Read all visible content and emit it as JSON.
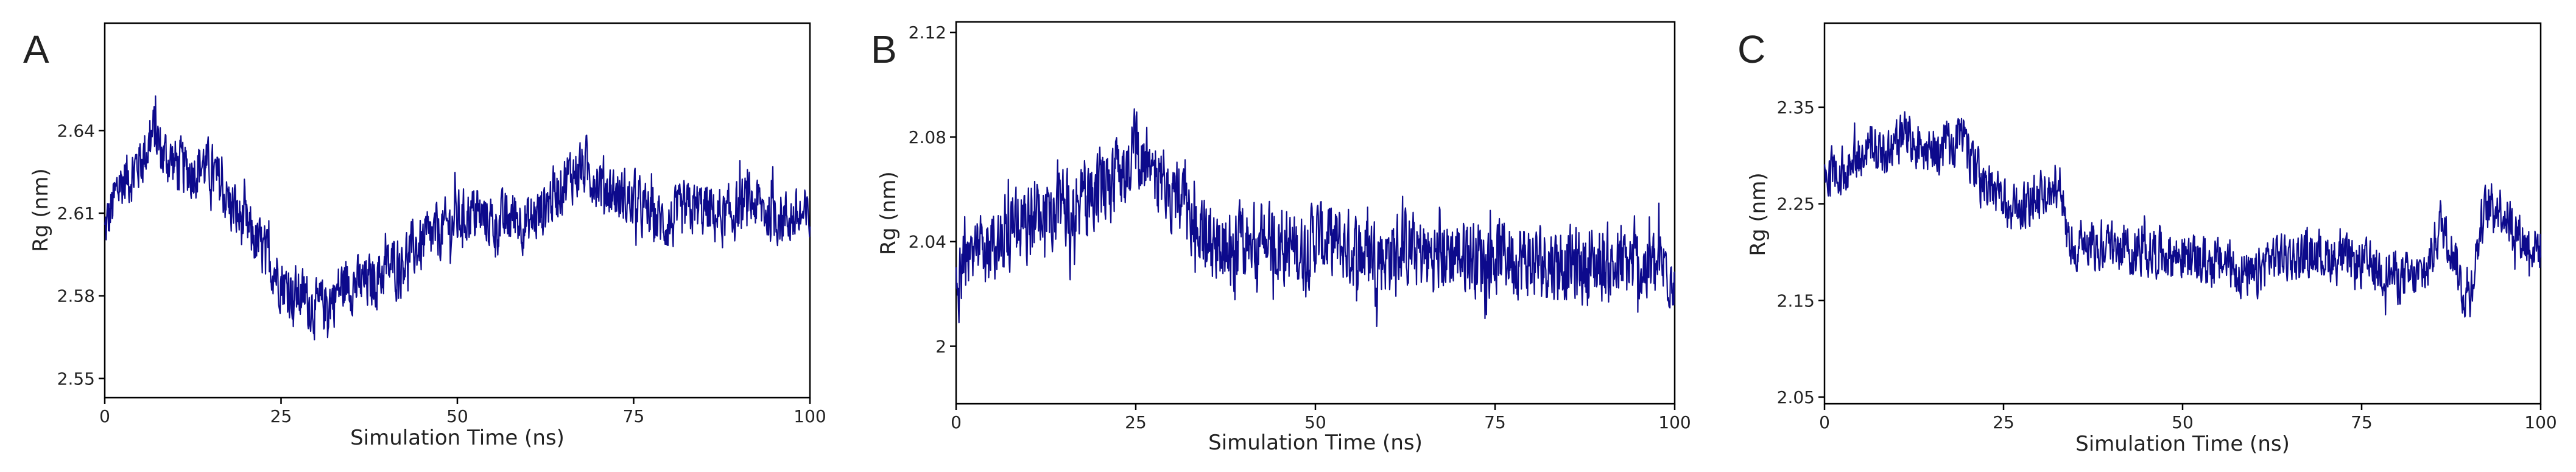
{
  "figure": {
    "background": "#ffffff",
    "line_color": "#0d0a8c",
    "axis_color": "#000000"
  },
  "chart_data": [
    {
      "type": "line",
      "panel_label": "A",
      "xlabel": "Simulation Time (ns)",
      "ylabel": "Rg (nm)",
      "xlim": [
        0,
        100
      ],
      "ylim": [
        2.543,
        2.679
      ],
      "xticks": [
        0,
        25,
        50,
        75,
        100
      ],
      "yticks": [
        2.55,
        2.58,
        2.61,
        2.64
      ],
      "ytick_labels": [
        "2.55",
        "2.58",
        "2.61",
        "2.64"
      ],
      "grid": false,
      "noise_amplitude": 0.009,
      "series": [
        {
          "color": "#0d0a8c",
          "x": [
            0,
            2,
            4,
            6,
            7,
            8,
            10,
            12,
            14,
            16,
            18,
            20,
            22,
            24,
            26,
            28,
            30,
            32,
            34,
            36,
            38,
            40,
            42,
            44,
            46,
            48,
            50,
            52,
            54,
            56,
            58,
            60,
            62,
            64,
            66,
            68,
            70,
            72,
            74,
            76,
            78,
            80,
            82,
            84,
            86,
            88,
            90,
            92,
            94,
            96,
            98,
            100
          ],
          "y": [
            2.603,
            2.62,
            2.625,
            2.633,
            2.64,
            2.632,
            2.628,
            2.625,
            2.628,
            2.622,
            2.612,
            2.605,
            2.598,
            2.59,
            2.582,
            2.58,
            2.575,
            2.578,
            2.585,
            2.584,
            2.585,
            2.59,
            2.593,
            2.597,
            2.6,
            2.604,
            2.608,
            2.61,
            2.608,
            2.606,
            2.609,
            2.606,
            2.611,
            2.618,
            2.624,
            2.626,
            2.622,
            2.618,
            2.615,
            2.612,
            2.608,
            2.606,
            2.61,
            2.612,
            2.61,
            2.608,
            2.612,
            2.614,
            2.61,
            2.609,
            2.608,
            2.608
          ]
        }
      ]
    },
    {
      "type": "line",
      "panel_label": "B",
      "xlabel": "Simulation Time (ns)",
      "ylabel": "Rg (nm)",
      "xlim": [
        0,
        100
      ],
      "ylim": [
        1.978,
        2.124
      ],
      "xticks": [
        0,
        25,
        50,
        75,
        100
      ],
      "yticks": [
        2.0,
        2.04,
        2.08,
        2.12
      ],
      "ytick_labels": [
        "2",
        "2.04",
        "2.08",
        "2.12"
      ],
      "grid": false,
      "noise_amplitude": 0.013,
      "series": [
        {
          "color": "#0d0a8c",
          "x": [
            0,
            2,
            4,
            6,
            8,
            10,
            12,
            14,
            16,
            18,
            20,
            22,
            24,
            25,
            26,
            28,
            30,
            32,
            34,
            36,
            38,
            40,
            42,
            44,
            46,
            48,
            50,
            52,
            54,
            56,
            58,
            60,
            62,
            64,
            66,
            68,
            70,
            72,
            74,
            76,
            78,
            80,
            82,
            84,
            86,
            88,
            90,
            92,
            94,
            96,
            98,
            100
          ],
          "y": [
            2.025,
            2.03,
            2.036,
            2.042,
            2.045,
            2.046,
            2.05,
            2.052,
            2.055,
            2.058,
            2.06,
            2.064,
            2.068,
            2.08,
            2.07,
            2.066,
            2.06,
            2.05,
            2.042,
            2.038,
            2.036,
            2.038,
            2.04,
            2.04,
            2.038,
            2.036,
            2.042,
            2.04,
            2.038,
            2.036,
            2.036,
            2.035,
            2.038,
            2.036,
            2.034,
            2.035,
            2.036,
            2.035,
            2.034,
            2.036,
            2.034,
            2.032,
            2.033,
            2.032,
            2.031,
            2.03,
            2.032,
            2.03,
            2.031,
            2.03,
            2.03,
            2.03
          ]
        }
      ]
    },
    {
      "type": "line",
      "panel_label": "C",
      "xlabel": "Simulation Time (ns)",
      "ylabel": "Rg (nm)",
      "xlim": [
        0,
        100
      ],
      "ylim": [
        2.043,
        2.437
      ],
      "xticks": [
        0,
        25,
        50,
        75,
        100
      ],
      "yticks": [
        2.05,
        2.15,
        2.25,
        2.35
      ],
      "ytick_labels": [
        "2.05",
        "2.15",
        "2.25",
        "2.35"
      ],
      "grid": false,
      "noise_amplitude": 0.022,
      "series": [
        {
          "color": "#0d0a8c",
          "x": [
            0,
            2,
            4,
            6,
            8,
            10,
            12,
            14,
            16,
            18,
            19,
            20,
            22,
            24,
            26,
            28,
            30,
            32,
            33,
            34,
            36,
            38,
            40,
            42,
            44,
            46,
            48,
            50,
            52,
            54,
            56,
            58,
            60,
            62,
            64,
            66,
            68,
            70,
            72,
            74,
            76,
            78,
            80,
            82,
            84,
            86,
            88,
            89,
            90,
            92,
            94,
            96,
            98,
            100
          ],
          "y": [
            2.28,
            2.282,
            2.29,
            2.31,
            2.3,
            2.31,
            2.32,
            2.3,
            2.305,
            2.31,
            2.33,
            2.3,
            2.27,
            2.26,
            2.24,
            2.25,
            2.26,
            2.255,
            2.27,
            2.21,
            2.208,
            2.21,
            2.208,
            2.206,
            2.2,
            2.202,
            2.198,
            2.196,
            2.19,
            2.188,
            2.19,
            2.18,
            2.17,
            2.195,
            2.196,
            2.195,
            2.2,
            2.196,
            2.192,
            2.188,
            2.185,
            2.18,
            2.176,
            2.172,
            2.178,
            2.23,
            2.2,
            2.16,
            2.155,
            2.24,
            2.25,
            2.23,
            2.208,
            2.205
          ]
        }
      ]
    }
  ]
}
